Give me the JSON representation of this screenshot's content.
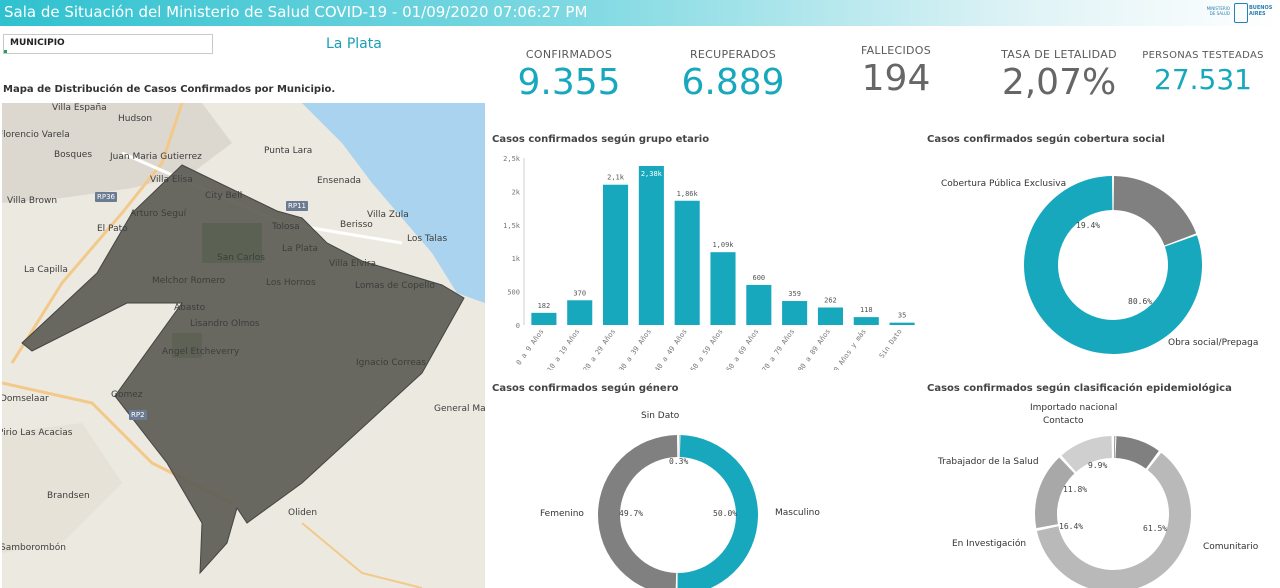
{
  "header": {
    "title": "Sala de Situación del Ministerio de Salud COVID-19 - 01/09/2020 07:06:27 PM",
    "logo_line1": "MINISTERIO DE SALUD",
    "logo_line2": "BUENOS AIRES"
  },
  "filter": {
    "label": "MUNICIPIO",
    "selected": "La Plata"
  },
  "map": {
    "title": "Mapa de Distribución de Casos Confirmados por Municipio.",
    "places": [
      "Villa España",
      "Hudson",
      "Florencio Varela",
      "Bosques",
      "Juan Maria Gutierrez",
      "Punta Lara",
      "Villa Elisa",
      "Ensenada",
      "Villa Brown",
      "City Bell",
      "Berisso",
      "Arturo Seguí",
      "Villa Zula",
      "El Pato",
      "Tolosa",
      "La Plata",
      "Los Talas",
      "San Carlos",
      "Villa Elvira",
      "La Capilla",
      "Melchor Romero",
      "Los Hornos",
      "Lomas de Copello",
      "Abasto",
      "Lisandro Olmos",
      "Angel Etcheverry",
      "Ignacio Correas",
      "Domselaar",
      "Gomez",
      "General Mansilla",
      "Pirio Las Acacias",
      "Brandsen",
      "Oliden",
      "Samborombón"
    ],
    "roads": [
      "RP36",
      "RP11",
      "RP2"
    ]
  },
  "kpis": [
    {
      "label": "CONFIRMADOS",
      "value": "9.355",
      "color": "#17a8bd"
    },
    {
      "label": "RECUPERADOS",
      "value": "6.889",
      "color": "#17a8bd"
    },
    {
      "label": "FALLECIDOS",
      "value": "194",
      "color": "#666666"
    },
    {
      "label": "TASA DE LETALIDAD",
      "value": "2,07%",
      "color": "#666666"
    },
    {
      "label": "PERSONAS TESTEADAS",
      "value": "27.531",
      "color": "#17a8bd"
    }
  ],
  "chart_data": [
    {
      "type": "bar",
      "title": "Casos confirmados según grupo etario",
      "categories": [
        "0 a 9 Años",
        "10 a 19 Años",
        "20 a 29 Años",
        "30 a 39 Años",
        "40 a 49 Años",
        "50 a 59 Años",
        "60 a 69 Años",
        "70 a 79 Años",
        "80 a 89 Años",
        "90 Años y más",
        "Sin Dato"
      ],
      "values": [
        182,
        370,
        2100,
        2380,
        1860,
        1090,
        600,
        359,
        262,
        118,
        35
      ],
      "data_labels": [
        "182",
        "370",
        "2,1k",
        "2,38k",
        "1,86k",
        "1,09k",
        "600",
        "359",
        "262",
        "118",
        "35"
      ],
      "yticks": [
        0,
        500,
        1000,
        1500,
        2000,
        2500
      ],
      "ytick_labels": [
        "0",
        "500",
        "1k",
        "1,5k",
        "2k",
        "2,5k"
      ],
      "ylim": [
        0,
        2500
      ],
      "color": "#17a8bd"
    },
    {
      "type": "pie",
      "title": "Casos confirmados según cobertura social",
      "labels": [
        "Cobertura Pública Exclusiva",
        "Obra social/Prepaga"
      ],
      "values": [
        19.4,
        80.6
      ],
      "pct_labels": [
        "19.4%",
        "80.6%"
      ],
      "colors": [
        "#808080",
        "#17a8bd"
      ]
    },
    {
      "type": "pie",
      "title": "Casos confirmados según género",
      "labels": [
        "Sin Dato",
        "Masculino",
        "Femenino"
      ],
      "values": [
        0.3,
        50.0,
        49.7
      ],
      "pct_labels": [
        "0.3%",
        "50.0%",
        "49.7%"
      ],
      "colors": [
        "#bdbdbd",
        "#17a8bd",
        "#808080"
      ]
    },
    {
      "type": "pie",
      "title": "Casos confirmados según clasificación epidemiológica",
      "labels": [
        "Importado nacional",
        "Contacto",
        "Comunitario",
        "En Investigación",
        "Trabajador de la Salud"
      ],
      "values": [
        0.4,
        9.9,
        61.5,
        16.4,
        11.8
      ],
      "pct_labels": [
        "",
        "9.9%",
        "61.5%",
        "16.4%",
        "11.8%"
      ],
      "colors": [
        "#6e6e6e",
        "#808080",
        "#b9b9b9",
        "#a8a8a8",
        "#cfcfcf"
      ]
    }
  ]
}
